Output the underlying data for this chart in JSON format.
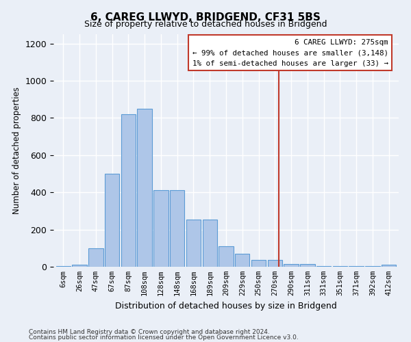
{
  "title": "6, CAREG LLWYD, BRIDGEND, CF31 5BS",
  "subtitle": "Size of property relative to detached houses in Bridgend",
  "xlabel": "Distribution of detached houses by size in Bridgend",
  "ylabel": "Number of detached properties",
  "categories": [
    "6sqm",
    "26sqm",
    "47sqm",
    "67sqm",
    "87sqm",
    "108sqm",
    "128sqm",
    "148sqm",
    "168sqm",
    "189sqm",
    "209sqm",
    "229sqm",
    "250sqm",
    "270sqm",
    "290sqm",
    "311sqm",
    "331sqm",
    "351sqm",
    "371sqm",
    "392sqm",
    "412sqm"
  ],
  "values": [
    5,
    10,
    100,
    500,
    820,
    850,
    410,
    410,
    255,
    255,
    110,
    70,
    35,
    35,
    15,
    13,
    5,
    5,
    5,
    5,
    10
  ],
  "bar_color": "#aec6e8",
  "bar_edge_color": "#5b9bd5",
  "vline_color": "#c0392b",
  "vline_pos": 13.25,
  "legend_title": "6 CAREG LLWYD: 275sqm",
  "legend_line1": "← 99% of detached houses are smaller (3,148)",
  "legend_line2": "1% of semi-detached houses are larger (33) →",
  "ylim": [
    0,
    1250
  ],
  "yticks": [
    0,
    200,
    400,
    600,
    800,
    1000,
    1200
  ],
  "footer1": "Contains HM Land Registry data © Crown copyright and database right 2024.",
  "footer2": "Contains public sector information licensed under the Open Government Licence v3.0.",
  "bg_color": "#eaeff7",
  "plot_bg_color": "#eaeff7"
}
